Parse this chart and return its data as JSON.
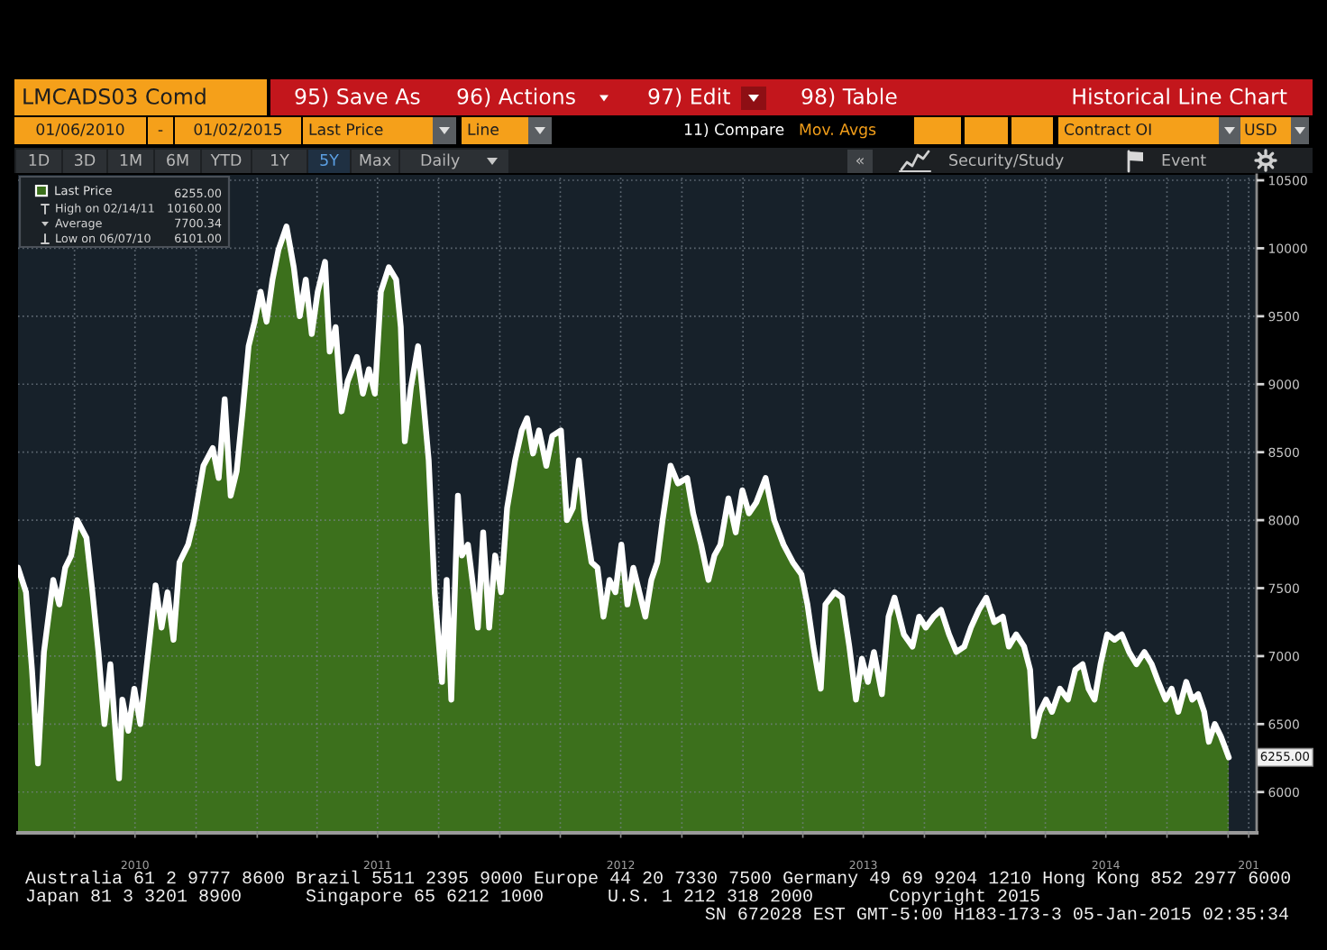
{
  "chart_data": {
    "type": "area",
    "title": "Historical Line Chart",
    "x": [
      "2010-01-06",
      "2010-01-18",
      "2010-01-27",
      "2010-02-05",
      "2010-02-14",
      "2010-02-28",
      "2010-03-09",
      "2010-03-18",
      "2010-03-27",
      "2010-04-05",
      "2010-04-19",
      "2010-04-28",
      "2010-05-07",
      "2010-05-16",
      "2010-05-25",
      "2010-06-07",
      "2010-06-12",
      "2010-06-21",
      "2010-06-30",
      "2010-07-09",
      "2010-07-18",
      "2010-08-01",
      "2010-08-10",
      "2010-08-19",
      "2010-08-28",
      "2010-09-06",
      "2010-09-19",
      "2010-09-28",
      "2010-10-12",
      "2010-10-26",
      "2010-11-04",
      "2010-11-13",
      "2010-11-22",
      "2010-12-01",
      "2010-12-10",
      "2010-12-19",
      "2010-12-28",
      "2011-01-06",
      "2011-01-15",
      "2011-01-24",
      "2011-02-02",
      "2011-02-14",
      "2011-02-25",
      "2011-03-06",
      "2011-03-15",
      "2011-03-24",
      "2011-04-02",
      "2011-04-13",
      "2011-04-20",
      "2011-04-29",
      "2011-05-08",
      "2011-05-17",
      "2011-05-31",
      "2011-06-09",
      "2011-06-18",
      "2011-06-27",
      "2011-07-06",
      "2011-07-18",
      "2011-07-29",
      "2011-08-05",
      "2011-08-11",
      "2011-08-20",
      "2011-08-31",
      "2011-09-07",
      "2011-09-16",
      "2011-09-25",
      "2011-10-06",
      "2011-10-13",
      "2011-10-20",
      "2011-10-30",
      "2011-11-05",
      "2011-11-14",
      "2011-11-23",
      "2011-11-29",
      "2011-12-07",
      "2011-12-16",
      "2011-12-25",
      "2012-01-03",
      "2012-01-12",
      "2012-01-24",
      "2012-02-03",
      "2012-02-11",
      "2012-02-20",
      "2012-02-29",
      "2012-03-11",
      "2012-03-20",
      "2012-04-02",
      "2012-04-11",
      "2012-04-20",
      "2012-04-29",
      "2012-05-08",
      "2012-05-18",
      "2012-05-27",
      "2012-06-05",
      "2012-06-14",
      "2012-06-23",
      "2012-07-02",
      "2012-07-11",
      "2012-07-20",
      "2012-07-29",
      "2012-08-07",
      "2012-08-16",
      "2012-08-25",
      "2012-09-02",
      "2012-09-14",
      "2012-09-25",
      "2012-10-09",
      "2012-10-18",
      "2012-10-30",
      "2012-11-10",
      "2012-11-19",
      "2012-11-28",
      "2012-12-10",
      "2012-12-21",
      "2012-12-31",
      "2013-01-10",
      "2013-01-21",
      "2013-02-04",
      "2013-02-17",
      "2013-03-03",
      "2013-03-17",
      "2013-03-30",
      "2013-04-08",
      "2013-04-17",
      "2013-04-28",
      "2013-05-05",
      "2013-05-19",
      "2013-05-30",
      "2013-06-10",
      "2013-06-20",
      "2013-06-29",
      "2013-07-08",
      "2013-07-17",
      "2013-07-29",
      "2013-08-08",
      "2013-08-17",
      "2013-08-31",
      "2013-09-13",
      "2013-09-23",
      "2013-10-03",
      "2013-10-15",
      "2013-10-26",
      "2013-11-07",
      "2013-11-18",
      "2013-11-30",
      "2013-12-10",
      "2013-12-22",
      "2014-01-02",
      "2014-01-14",
      "2014-01-27",
      "2014-02-05",
      "2014-02-16",
      "2014-02-28",
      "2014-03-09",
      "2014-03-15",
      "2014-03-24",
      "2014-04-02",
      "2014-04-11",
      "2014-04-23",
      "2014-05-05",
      "2014-05-16",
      "2014-05-27",
      "2014-06-05",
      "2014-06-14",
      "2014-06-23",
      "2014-07-03",
      "2014-07-14",
      "2014-07-25",
      "2014-08-05",
      "2014-08-16",
      "2014-08-28",
      "2014-09-08",
      "2014-09-18",
      "2014-09-29",
      "2014-10-08",
      "2014-10-18",
      "2014-10-30",
      "2014-11-08",
      "2014-11-17",
      "2014-11-26",
      "2014-12-03",
      "2014-12-12",
      "2014-12-21",
      "2014-12-28",
      "2015-01-02"
    ],
    "series": [
      {
        "name": "Last Price",
        "color": "#3c701c",
        "values": [
          7650,
          7470,
          6900,
          6210,
          7030,
          7560,
          7380,
          7650,
          7740,
          8000,
          7870,
          7470,
          7030,
          6500,
          6940,
          6101,
          6680,
          6450,
          6760,
          6500,
          6900,
          7520,
          7210,
          7470,
          7120,
          7690,
          7820,
          8000,
          8400,
          8530,
          8310,
          8890,
          8180,
          8360,
          8800,
          9280,
          9460,
          9680,
          9460,
          9770,
          9990,
          10160,
          9860,
          9500,
          9770,
          9370,
          9680,
          9900,
          9240,
          9420,
          8800,
          9020,
          9200,
          8930,
          9110,
          8930,
          9680,
          9860,
          9770,
          9420,
          8580,
          8970,
          9280,
          8930,
          8440,
          7470,
          6810,
          7560,
          6680,
          8180,
          7740,
          7820,
          7470,
          7210,
          7910,
          7210,
          7740,
          7470,
          8090,
          8440,
          8660,
          8750,
          8490,
          8660,
          8400,
          8620,
          8660,
          8000,
          8090,
          8440,
          8000,
          7690,
          7650,
          7290,
          7560,
          7470,
          7820,
          7380,
          7650,
          7470,
          7290,
          7560,
          7690,
          8000,
          8400,
          8270,
          8310,
          8050,
          7820,
          7560,
          7740,
          7820,
          8160,
          7910,
          8220,
          8050,
          8130,
          8310,
          8000,
          7820,
          7690,
          7600,
          7380,
          7070,
          6760,
          7380,
          7470,
          7430,
          7070,
          6680,
          6980,
          6810,
          7030,
          6720,
          7290,
          7430,
          7160,
          7070,
          7290,
          7210,
          7290,
          7340,
          7160,
          7030,
          7070,
          7210,
          7340,
          7430,
          7250,
          7290,
          7070,
          7160,
          7070,
          6900,
          6410,
          6590,
          6680,
          6590,
          6760,
          6680,
          6900,
          6940,
          6760,
          6680,
          6940,
          7160,
          7120,
          7160,
          7030,
          6940,
          7030,
          6940,
          6810,
          6680,
          6760,
          6590,
          6810,
          6680,
          6720,
          6590,
          6370,
          6500,
          6410,
          6320,
          6255
        ]
      }
    ],
    "xlim": [
      "2010-01-06",
      "2015-02-13"
    ],
    "xticks": [
      {
        "value": "2010-04-01",
        "label": null
      },
      {
        "value": "2010-07-01",
        "label": "2010"
      },
      {
        "value": "2010-10-01",
        "label": null
      },
      {
        "value": "2011-01-01",
        "label": null
      },
      {
        "value": "2011-04-01",
        "label": null
      },
      {
        "value": "2011-07-01",
        "label": "2011"
      },
      {
        "value": "2011-10-01",
        "label": null
      },
      {
        "value": "2012-01-01",
        "label": null
      },
      {
        "value": "2012-04-01",
        "label": null
      },
      {
        "value": "2012-07-01",
        "label": "2012"
      },
      {
        "value": "2012-10-01",
        "label": null
      },
      {
        "value": "2013-01-01",
        "label": null
      },
      {
        "value": "2013-04-01",
        "label": null
      },
      {
        "value": "2013-07-01",
        "label": "2013"
      },
      {
        "value": "2013-10-01",
        "label": null
      },
      {
        "value": "2014-01-01",
        "label": null
      },
      {
        "value": "2014-04-01",
        "label": null
      },
      {
        "value": "2014-07-01",
        "label": "2014"
      },
      {
        "value": "2014-10-01",
        "label": null
      },
      {
        "value": "2015-01-01",
        "label": null
      },
      {
        "value": "2015-02-01",
        "label": "201"
      }
    ],
    "ylim": [
      5700,
      10540
    ],
    "yticks": [
      6000,
      6500,
      7000,
      7500,
      8000,
      8500,
      9000,
      9500,
      10000,
      10500
    ],
    "grid": true,
    "legend": "top left",
    "annotations": [
      "LMCADS03 Comd",
      "95) Save As",
      "96) Actions",
      "97) Edit",
      "98) Table",
      "01/06/2010",
      "-",
      "01/02/2015",
      "Last Price",
      "Line",
      "11) Compare",
      "Mov. Avgs",
      "Contract OI",
      "USD",
      "1D",
      "3D",
      "1M",
      "6M",
      "YTD",
      "1Y",
      "5Y",
      "Max",
      "Daily",
      "«",
      "Security/Study",
      "Event",
      "6255.00",
      "High on 02/14/11",
      "10160.00",
      "Average",
      "7700.34",
      "Low on 06/07/10",
      "6101.00",
      {
        "text": "6255.00",
        "x": "2015-01-02",
        "y": 6255
      },
      "Australia 61 2 9777 8600 Brazil 5511 2395 9000 Europe 44 20 7330 7500 Germany 49 69 9204 1210 Hong Kong 852 2977 6000",
      "Japan 81 3 3201 8900",
      "Singapore 65 6212 1000",
      "U.S. 1 212 318 2000",
      "Copyright 2015",
      "SN 672028 EST GMT-5:00 H183-173-3 05-Jan-2015 02:35:34"
    ]
  }
}
